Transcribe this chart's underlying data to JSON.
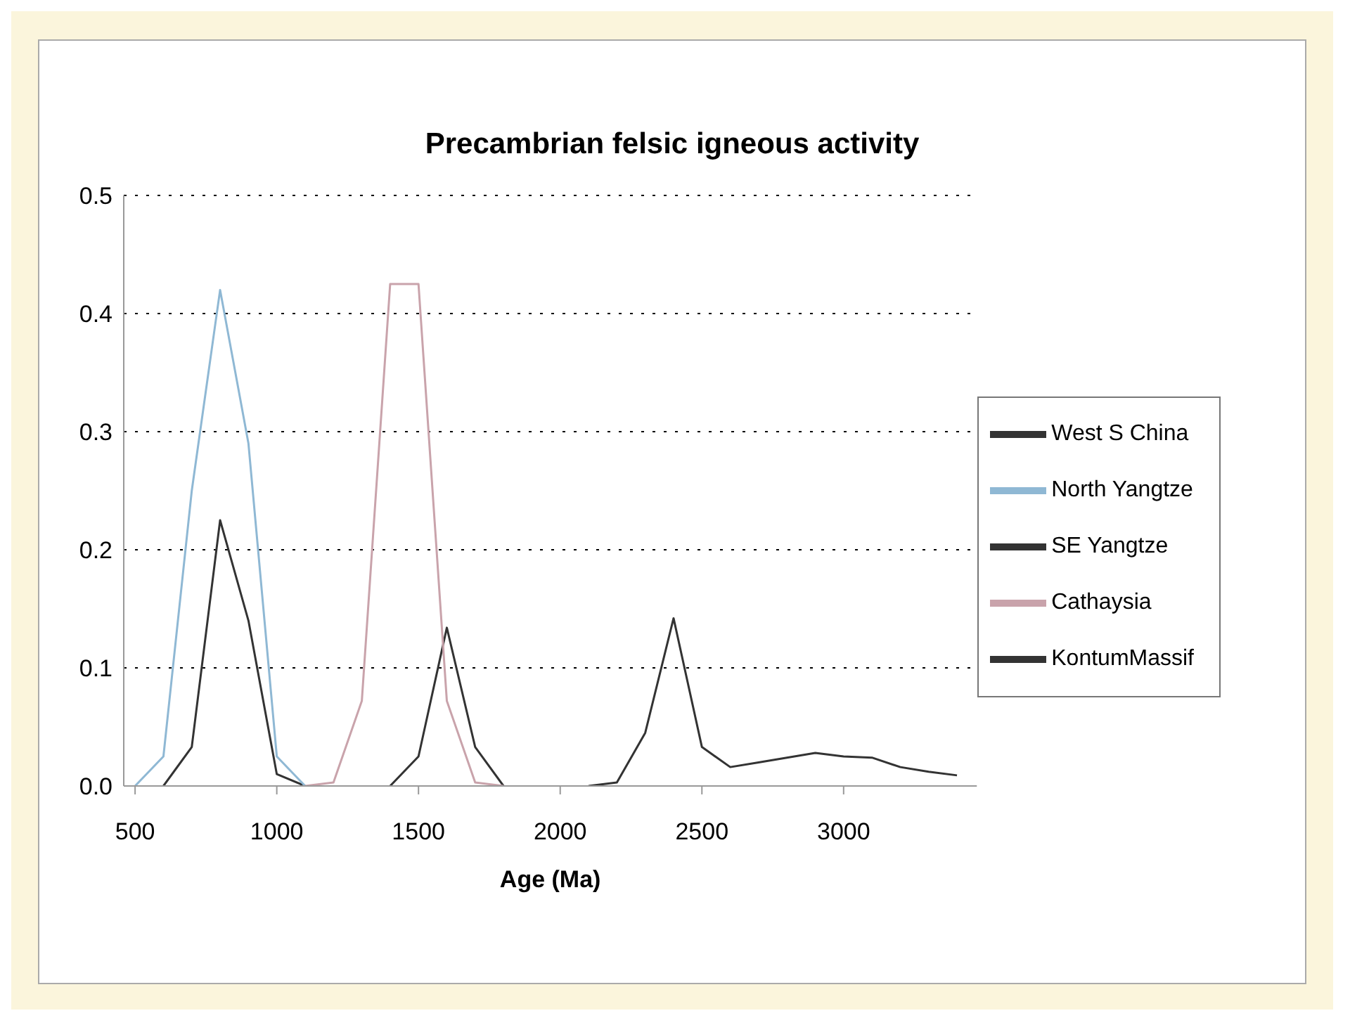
{
  "chart_data": {
    "type": "line",
    "title": "Precambrian felsic igneous activity",
    "xlabel": "Age (Ma)",
    "xlim": [
      460,
      3470
    ],
    "xticks": [
      500,
      1000,
      1500,
      2000,
      2500,
      3000
    ],
    "ylim": [
      0,
      0.5
    ],
    "yticks": [
      {
        "value": 0,
        "label": "0.0"
      },
      0.1,
      0.2,
      0.3,
      0.4,
      0.5
    ],
    "grid": "y",
    "legend": "right",
    "marker": "none",
    "line_style": "solid",
    "series": [
      {
        "name": "West S China",
        "color": "#333333",
        "x": [
          600,
          700,
          800,
          900,
          1000,
          1100
        ],
        "values": [
          0,
          0.033,
          0.225,
          0.14,
          0.01,
          0
        ]
      },
      {
        "name": "North Yangtze",
        "color": "#8fb8d4",
        "x": [
          500,
          600,
          700,
          800,
          900,
          1000,
          1100
        ],
        "values": [
          0,
          0.025,
          0.25,
          0.42,
          0.29,
          0.025,
          0
        ]
      },
      {
        "name": "SE Yangtze",
        "color": "#333333",
        "x": [
          1400,
          1500,
          1600,
          1700,
          1800
        ],
        "values": [
          0,
          0.025,
          0.134,
          0.033,
          0
        ]
      },
      {
        "name": "Cathaysia",
        "color": "#c9a3ab",
        "x": [
          1100,
          1200,
          1300,
          1400,
          1500,
          1600,
          1700,
          1800
        ],
        "values": [
          0,
          0.003,
          0.072,
          0.425,
          0.425,
          0.072,
          0.003,
          0
        ]
      },
      {
        "name": "KontumMassif",
        "color": "#333333",
        "x": [
          2100,
          2200,
          2300,
          2400,
          2500,
          2600,
          2700,
          2800,
          2900,
          3000,
          3100,
          3200,
          3300,
          3400
        ],
        "values": [
          0,
          0.003,
          0.045,
          0.142,
          0.033,
          0.016,
          0.02,
          0.024,
          0.028,
          0.025,
          0.024,
          0.016,
          0.012,
          0.009
        ]
      }
    ]
  }
}
